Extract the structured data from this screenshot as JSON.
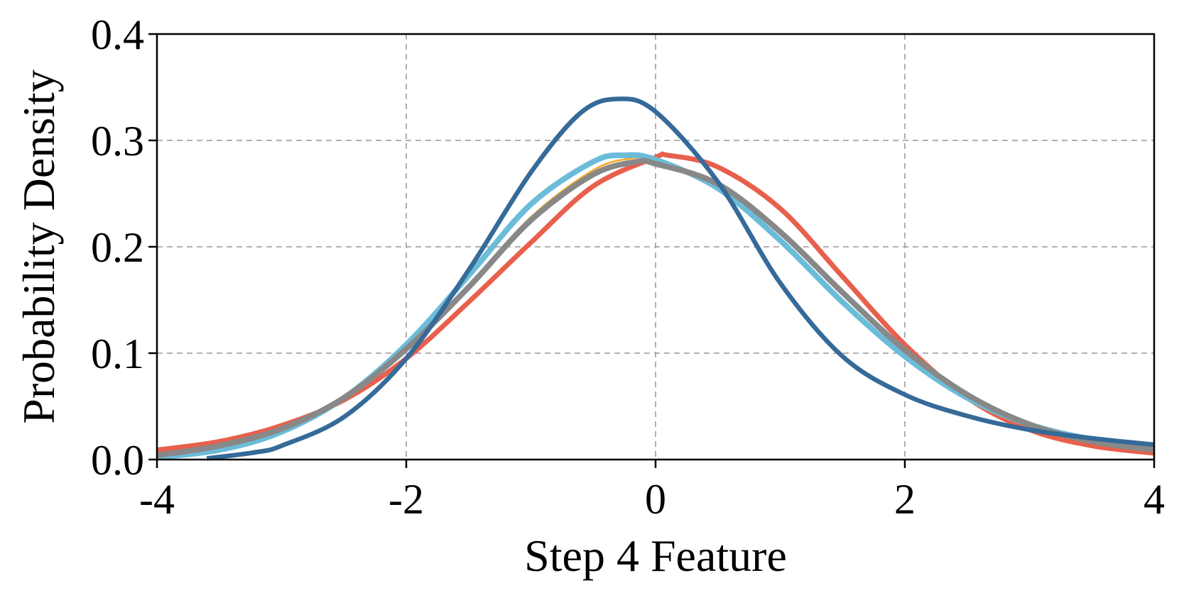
{
  "chart_data": {
    "type": "line",
    "xlabel": "Step 4 Feature",
    "ylabel": "Probability Density",
    "xlim": [
      -4,
      4
    ],
    "ylim": [
      0,
      0.4
    ],
    "xticks": [
      -4,
      -2,
      0,
      2,
      4
    ],
    "xtick_labels": [
      "-4",
      "-2",
      "0",
      "2",
      "4"
    ],
    "yticks": [
      0.0,
      0.1,
      0.2,
      0.3,
      0.4
    ],
    "ytick_labels": [
      "0.0",
      "0.1",
      "0.2",
      "0.3",
      "0.4"
    ],
    "grid": true,
    "series": [
      {
        "color": "#e8604c",
        "x": [
          -4,
          -3.5,
          -3,
          -2.5,
          -2,
          -1.5,
          -1,
          -0.5,
          0,
          0.1,
          0.5,
          1,
          1.5,
          2,
          2.5,
          3,
          3.5,
          4
        ],
        "y": [
          0.009,
          0.017,
          0.032,
          0.056,
          0.095,
          0.148,
          0.204,
          0.257,
          0.284,
          0.286,
          0.275,
          0.236,
          0.172,
          0.108,
          0.058,
          0.028,
          0.013,
          0.006
        ]
      },
      {
        "color": "#f5a623",
        "x": [
          -4,
          -3.5,
          -3,
          -2.5,
          -2,
          -1.5,
          -1,
          -0.5,
          -0.2,
          0,
          0.5,
          1,
          1.5,
          2,
          2.5,
          3,
          3.5,
          4
        ],
        "y": [
          0.005,
          0.013,
          0.028,
          0.058,
          0.103,
          0.163,
          0.228,
          0.272,
          0.283,
          0.281,
          0.259,
          0.213,
          0.155,
          0.101,
          0.06,
          0.034,
          0.019,
          0.01
        ]
      },
      {
        "color": "#6bbcd9",
        "x": [
          -4,
          -3.5,
          -3,
          -2.5,
          -2,
          -1.5,
          -1,
          -0.5,
          -0.25,
          0,
          0.5,
          1,
          1.5,
          2,
          2.5,
          3,
          3.5,
          4
        ],
        "y": [
          0.002,
          0.009,
          0.026,
          0.058,
          0.108,
          0.173,
          0.24,
          0.28,
          0.286,
          0.282,
          0.255,
          0.206,
          0.148,
          0.097,
          0.058,
          0.033,
          0.019,
          0.01
        ]
      },
      {
        "color": "#888888",
        "x": [
          -4,
          -3.5,
          -3,
          -2.5,
          -2,
          -1.5,
          -1,
          -0.5,
          -0.15,
          0,
          0.5,
          1,
          1.5,
          2,
          2.5,
          3,
          3.5,
          4
        ],
        "y": [
          0.004,
          0.013,
          0.029,
          0.058,
          0.104,
          0.162,
          0.225,
          0.268,
          0.28,
          0.278,
          0.259,
          0.214,
          0.157,
          0.103,
          0.061,
          0.033,
          0.017,
          0.009
        ]
      },
      {
        "color": "#356a99",
        "x": [
          -3.6,
          -3.2,
          -3,
          -2.5,
          -2,
          -1.5,
          -1,
          -0.6,
          -0.3,
          0,
          0.5,
          1,
          1.5,
          2,
          2.5,
          3,
          3.5,
          4
        ],
        "y": [
          0.001,
          0.007,
          0.013,
          0.04,
          0.095,
          0.178,
          0.27,
          0.326,
          0.339,
          0.327,
          0.261,
          0.166,
          0.097,
          0.061,
          0.041,
          0.028,
          0.02,
          0.014
        ]
      }
    ]
  }
}
